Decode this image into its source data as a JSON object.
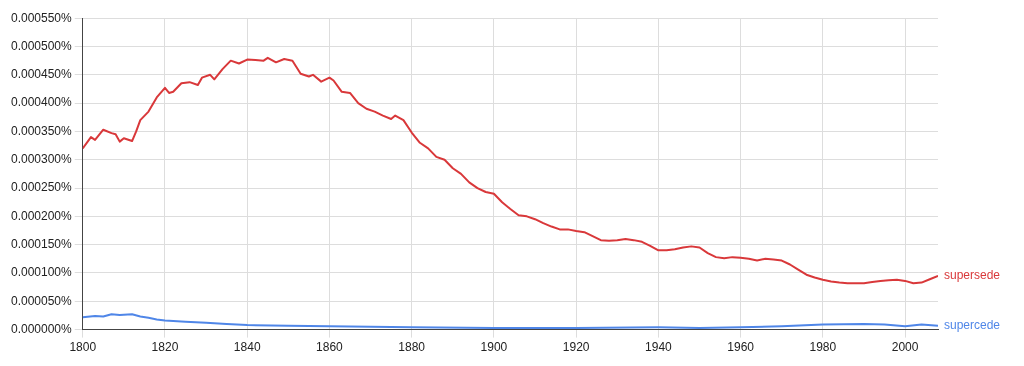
{
  "chart_data": {
    "type": "line",
    "xlim": [
      1800,
      2008
    ],
    "xticks": [
      1800,
      1820,
      1840,
      1860,
      1880,
      1900,
      1920,
      1940,
      1960,
      1980,
      2000
    ],
    "ylim": [
      0,
      0.00055
    ],
    "yticks": [
      {
        "value": 0,
        "label": "0.000000%"
      },
      {
        "value": 5e-05,
        "label": "0.000050%"
      },
      {
        "value": 0.0001,
        "label": "0.000100%"
      },
      {
        "value": 0.00015,
        "label": "0.000150%"
      },
      {
        "value": 0.0002,
        "label": "0.000200%"
      },
      {
        "value": 0.00025,
        "label": "0.000250%"
      },
      {
        "value": 0.0003,
        "label": "0.000300%"
      },
      {
        "value": 0.00035,
        "label": "0.000350%"
      },
      {
        "value": 0.0004,
        "label": "0.000400%"
      },
      {
        "value": 0.00045,
        "label": "0.000450%"
      },
      {
        "value": 0.0005,
        "label": "0.000500%"
      },
      {
        "value": 0.00055,
        "label": "0.000550%"
      }
    ],
    "grid": true,
    "legend": false,
    "marker": "none",
    "line_style": "solid",
    "series": [
      {
        "name": "supersede",
        "color": "#d9383a",
        "x": [
          1800,
          1802,
          1803,
          1805,
          1807,
          1808,
          1809,
          1810,
          1812,
          1813,
          1814,
          1816,
          1818,
          1820,
          1821,
          1822,
          1824,
          1826,
          1828,
          1829,
          1831,
          1832,
          1834,
          1836,
          1838,
          1840,
          1842,
          1844,
          1845,
          1847,
          1849,
          1851,
          1853,
          1855,
          1856,
          1858,
          1860,
          1861,
          1863,
          1865,
          1867,
          1869,
          1871,
          1873,
          1875,
          1876,
          1878,
          1880,
          1882,
          1884,
          1886,
          1888,
          1890,
          1892,
          1894,
          1896,
          1898,
          1900,
          1902,
          1904,
          1906,
          1908,
          1910,
          1912,
          1914,
          1916,
          1918,
          1920,
          1922,
          1924,
          1926,
          1928,
          1930,
          1932,
          1934,
          1936,
          1938,
          1940,
          1942,
          1944,
          1946,
          1948,
          1950,
          1952,
          1954,
          1956,
          1958,
          1960,
          1962,
          1964,
          1966,
          1968,
          1970,
          1972,
          1974,
          1976,
          1978,
          1980,
          1982,
          1984,
          1986,
          1988,
          1990,
          1992,
          1994,
          1996,
          1998,
          2000,
          2002,
          2004,
          2006,
          2008
        ],
        "values": [
          0.00032,
          0.00034,
          0.000335,
          0.000353,
          0.000347,
          0.000345,
          0.000332,
          0.000338,
          0.000333,
          0.00035,
          0.00037,
          0.000385,
          0.00041,
          0.000427,
          0.000418,
          0.00042,
          0.000435,
          0.000437,
          0.000432,
          0.000445,
          0.00045,
          0.000442,
          0.00046,
          0.000475,
          0.00047,
          0.000477,
          0.000476,
          0.000475,
          0.00048,
          0.000472,
          0.000478,
          0.000475,
          0.000452,
          0.000447,
          0.00045,
          0.000438,
          0.000445,
          0.00044,
          0.00042,
          0.000418,
          0.0004,
          0.00039,
          0.000385,
          0.000378,
          0.000372,
          0.000378,
          0.00037,
          0.000348,
          0.00033,
          0.00032,
          0.000305,
          0.0003,
          0.000285,
          0.000275,
          0.00026,
          0.00025,
          0.000243,
          0.00024,
          0.000225,
          0.000213,
          0.000202,
          0.0002,
          0.000195,
          0.000188,
          0.000182,
          0.000177,
          0.000177,
          0.000174,
          0.000172,
          0.000165,
          0.000158,
          0.000157,
          0.000158,
          0.00016,
          0.000158,
          0.000155,
          0.000148,
          0.00014,
          0.00014,
          0.000142,
          0.000145,
          0.000147,
          0.000145,
          0.000135,
          0.000128,
          0.000126,
          0.000128,
          0.000127,
          0.000125,
          0.000122,
          0.000125,
          0.000124,
          0.000122,
          0.000115,
          0.000106,
          9.7e-05,
          9.2e-05,
          8.8e-05,
          8.5e-05,
          8.3e-05,
          8.2e-05,
          8.2e-05,
          8.2e-05,
          8.4e-05,
          8.6e-05,
          8.7e-05,
          8.8e-05,
          8.6e-05,
          8.2e-05,
          8.3e-05,
          8.9e-05,
          9.5e-05
        ]
      },
      {
        "name": "supercede",
        "color": "#4f86e8",
        "x": [
          1800,
          1803,
          1805,
          1807,
          1809,
          1812,
          1814,
          1816,
          1818,
          1820,
          1825,
          1830,
          1835,
          1840,
          1850,
          1860,
          1870,
          1880,
          1900,
          1920,
          1940,
          1950,
          1960,
          1970,
          1980,
          1990,
          1995,
          2000,
          2004,
          2008
        ],
        "values": [
          2.2e-05,
          2.4e-05,
          2.3e-05,
          2.7e-05,
          2.6e-05,
          2.7e-05,
          2.3e-05,
          2.1e-05,
          1.8e-05,
          1.6e-05,
          1.4e-05,
          1.2e-05,
          1e-05,
          8e-06,
          7e-06,
          6e-06,
          5e-06,
          4e-06,
          3e-06,
          3e-06,
          4e-06,
          3e-06,
          4e-06,
          6e-06,
          9e-06,
          1e-05,
          9e-06,
          6e-06,
          9e-06,
          7e-06
        ]
      }
    ]
  }
}
